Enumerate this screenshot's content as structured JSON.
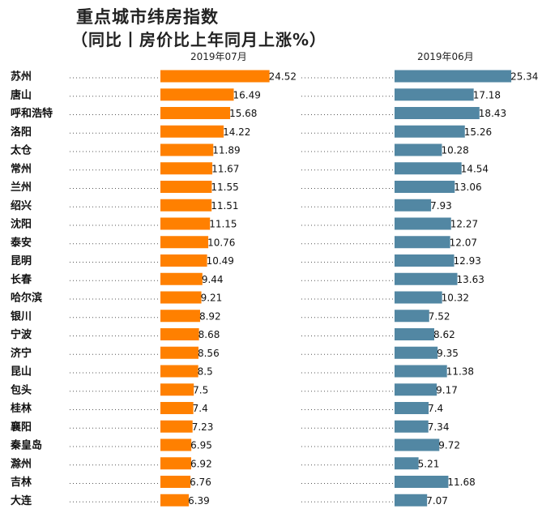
{
  "title": "重点城市纬房指数",
  "subtitle": "（同比丨房价比上年同月上涨%）",
  "colors": {
    "left_series": "#FF8000",
    "right_series": "#5287A3",
    "dots": "#555555",
    "value_text": "#111111"
  },
  "chart_data": {
    "type": "bar",
    "orientation": "horizontal",
    "layout": "two side-by-side panels sharing category labels",
    "categories": [
      "苏州",
      "唐山",
      "呼和浩特",
      "洛阳",
      "太仓",
      "常州",
      "兰州",
      "绍兴",
      "沈阳",
      "泰安",
      "昆明",
      "长春",
      "哈尔滨",
      "银川",
      "宁波",
      "济宁",
      "昆山",
      "包头",
      "桂林",
      "襄阳",
      "秦皇岛",
      "滁州",
      "吉林",
      "大连"
    ],
    "series": [
      {
        "name": "2019年07月",
        "color": "#FF8000",
        "values": [
          24.52,
          16.49,
          15.68,
          14.22,
          11.89,
          11.67,
          11.55,
          11.51,
          11.15,
          10.76,
          10.49,
          9.44,
          9.21,
          8.92,
          8.68,
          8.56,
          8.5,
          7.5,
          7.4,
          7.23,
          6.95,
          6.92,
          6.76,
          6.39
        ],
        "labels": [
          "24.52",
          "16.49",
          "15.68",
          "14.22",
          "11.89",
          "11.67",
          "11.55",
          "11.51",
          "11.15",
          "10.76",
          "10.49",
          "9.44",
          "9.21",
          "8.92",
          "8.68",
          "8.56",
          "8.5",
          "7.5",
          "7.4",
          "7.23",
          "6.95",
          "6.92",
          "6.76",
          "6.39"
        ]
      },
      {
        "name": "2019年06月",
        "color": "#5287A3",
        "values": [
          25.34,
          17.18,
          18.43,
          15.26,
          10.28,
          14.54,
          13.06,
          7.93,
          12.27,
          12.07,
          12.93,
          13.63,
          10.32,
          7.52,
          8.62,
          9.35,
          11.38,
          9.17,
          7.4,
          7.34,
          9.72,
          5.21,
          11.68,
          7.07
        ],
        "labels": [
          "25.34",
          "17.18",
          "18.43",
          "15.26",
          "10.28",
          "14.54",
          "13.06",
          "7.93",
          "12.27",
          "12.07",
          "12.93",
          "13.63",
          "10.32",
          "7.52",
          "8.62",
          "9.35",
          "11.38",
          "9.17",
          "7.4",
          "7.34",
          "9.72",
          "5.21",
          "11.68",
          "7.07"
        ]
      }
    ],
    "xlim": [
      0,
      25.5
    ],
    "grid": false,
    "legend": "series names shown above each panel"
  }
}
